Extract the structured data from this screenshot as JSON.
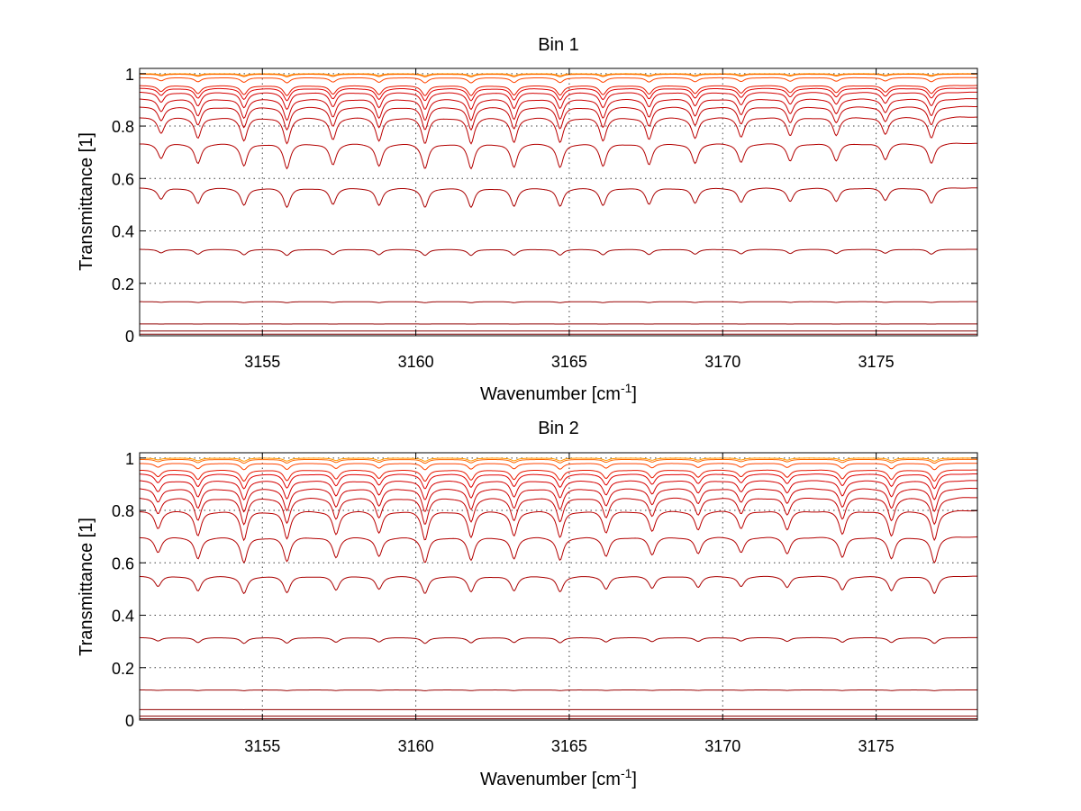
{
  "chart_data": [
    {
      "type": "line",
      "title": "Bin 1",
      "xlabel": "Wavenumber [cm",
      "xlabel_sup": "-1",
      "xlabel_close": "]",
      "ylabel": "Transmittance [1]",
      "xlim": [
        3151,
        3178.3
      ],
      "ylim": [
        0,
        1.02
      ],
      "xticks": [
        "3155",
        "3160",
        "3165",
        "3170",
        "3175"
      ],
      "yticks": [
        "0",
        "0.2",
        "0.4",
        "0.6",
        "0.8",
        "1"
      ],
      "grid": true,
      "line_centers": [
        3151.7,
        3152.9,
        3154.4,
        3155.8,
        3157.3,
        3158.8,
        3160.3,
        3161.8,
        3163.2,
        3164.7,
        3166.1,
        3167.6,
        3169.1,
        3170.6,
        3172.2,
        3173.7,
        3175.3,
        3176.8
      ],
      "line_strengths": [
        0.6,
        0.8,
        0.9,
        1.0,
        0.85,
        0.9,
        1.0,
        1.0,
        0.95,
        0.95,
        0.9,
        0.85,
        0.8,
        0.75,
        0.7,
        0.7,
        0.65,
        0.8
      ],
      "series": [
        {
          "base": 1.0,
          "depth": 0.008,
          "color": "#ff9900"
        },
        {
          "base": 0.998,
          "depth": 0.01,
          "color": "#ff6600"
        },
        {
          "base": 0.985,
          "depth": 0.02,
          "color": "#ff4400"
        },
        {
          "base": 0.955,
          "depth": 0.04,
          "color": "#e81800"
        },
        {
          "base": 0.945,
          "depth": 0.05,
          "color": "#e00000"
        },
        {
          "base": 0.93,
          "depth": 0.07,
          "color": "#d40000"
        },
        {
          "base": 0.905,
          "depth": 0.09,
          "color": "#cc0000"
        },
        {
          "base": 0.875,
          "depth": 0.1,
          "color": "#c40000"
        },
        {
          "base": 0.835,
          "depth": 0.12,
          "color": "#bb0000"
        },
        {
          "base": 0.735,
          "depth": 0.13,
          "color": "#b30000"
        },
        {
          "base": 0.565,
          "depth": 0.13,
          "color": "#aa0000"
        },
        {
          "base": 0.33,
          "depth": 0.07,
          "color": "#a20000"
        },
        {
          "base": 0.13,
          "depth": 0.03,
          "color": "#990000"
        },
        {
          "base": 0.045,
          "depth": 0.008,
          "color": "#900000"
        },
        {
          "base": 0.018,
          "depth": 0.003,
          "color": "#880000"
        },
        {
          "base": 0.006,
          "depth": 0.001,
          "color": "#7a0000"
        }
      ]
    },
    {
      "type": "line",
      "title": "Bin 2",
      "xlabel": "Wavenumber [cm",
      "xlabel_sup": "-1",
      "xlabel_close": "]",
      "ylabel": "Transmittance [1]",
      "xlim": [
        3151,
        3178.3
      ],
      "ylim": [
        0,
        1.02
      ],
      "xticks": [
        "3155",
        "3160",
        "3165",
        "3170",
        "3175"
      ],
      "yticks": [
        "0",
        "0.2",
        "0.4",
        "0.6",
        "0.8",
        "1"
      ],
      "grid": true,
      "line_centers": [
        3151.6,
        3152.9,
        3154.4,
        3155.8,
        3157.4,
        3158.8,
        3160.3,
        3161.8,
        3163.2,
        3164.7,
        3166.2,
        3167.7,
        3169.2,
        3170.6,
        3172.1,
        3173.9,
        3175.5,
        3176.9
      ],
      "line_strengths": [
        0.6,
        0.85,
        1.0,
        0.95,
        0.8,
        0.75,
        1.0,
        0.9,
        0.85,
        0.9,
        0.75,
        0.7,
        0.65,
        0.6,
        0.65,
        0.8,
        0.85,
        1.0
      ],
      "series": [
        {
          "base": 1.0,
          "depth": 0.012,
          "color": "#ff9900"
        },
        {
          "base": 0.995,
          "depth": 0.015,
          "color": "#ff6600"
        },
        {
          "base": 0.98,
          "depth": 0.025,
          "color": "#ff4400"
        },
        {
          "base": 0.955,
          "depth": 0.045,
          "color": "#e81800"
        },
        {
          "base": 0.94,
          "depth": 0.06,
          "color": "#e00000"
        },
        {
          "base": 0.915,
          "depth": 0.08,
          "color": "#d40000"
        },
        {
          "base": 0.885,
          "depth": 0.1,
          "color": "#cc0000"
        },
        {
          "base": 0.85,
          "depth": 0.12,
          "color": "#c40000"
        },
        {
          "base": 0.8,
          "depth": 0.14,
          "color": "#bb0000"
        },
        {
          "base": 0.7,
          "depth": 0.14,
          "color": "#b30000"
        },
        {
          "base": 0.55,
          "depth": 0.12,
          "color": "#aa0000"
        },
        {
          "base": 0.315,
          "depth": 0.07,
          "color": "#a20000"
        },
        {
          "base": 0.115,
          "depth": 0.025,
          "color": "#990000"
        },
        {
          "base": 0.04,
          "depth": 0.007,
          "color": "#900000"
        },
        {
          "base": 0.015,
          "depth": 0.003,
          "color": "#880000"
        },
        {
          "base": 0.005,
          "depth": 0.001,
          "color": "#7a0000"
        }
      ]
    }
  ]
}
